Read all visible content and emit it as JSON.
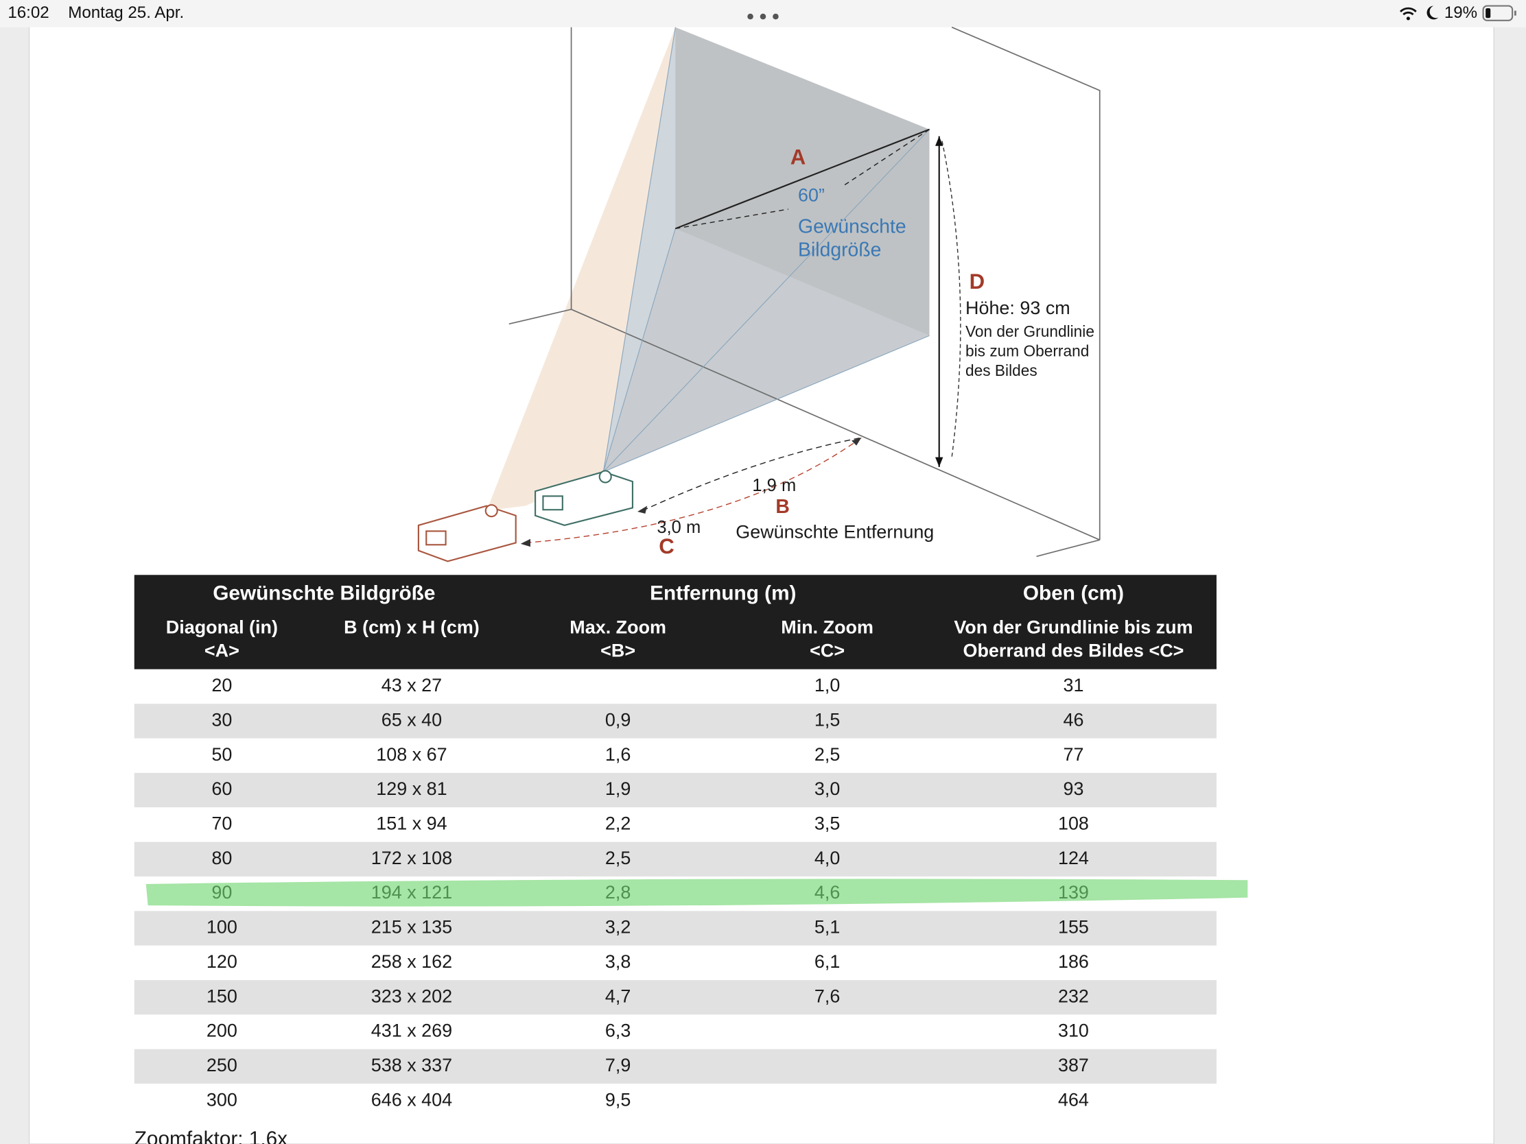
{
  "status_bar": {
    "time": "16:02",
    "date": "Montag 25. Apr.",
    "battery": "19%"
  },
  "diagram": {
    "label_a": "A",
    "diagonal": "60”",
    "image_size_1": "Gewünschte",
    "image_size_2": "Bildgröße",
    "label_d": "D",
    "height": "Höhe: 93 cm",
    "height_note_1": "Von der Grundlinie",
    "height_note_2": "bis zum Oberrand",
    "height_note_3": "des Bildes",
    "distance_b": "1,9 m",
    "label_b": "B",
    "distance_c": "3,0 m",
    "label_c": "C",
    "distance_caption": "Gewünschte Entfernung"
  },
  "table": {
    "groups": [
      "Gewünschte Bildgröße",
      "Entfernung (m)",
      "Oben (cm)"
    ],
    "columns": [
      [
        "Diagonal (in)",
        "<A>"
      ],
      [
        "B (cm) x H (cm)"
      ],
      [
        "Max. Zoom",
        "<B>"
      ],
      [
        "Min. Zoom",
        "<C>"
      ],
      [
        "Von der Grundlinie bis zum",
        "Oberrand des Bildes <C>"
      ]
    ],
    "rows": [
      [
        "20",
        "43 x 27",
        null,
        "1,0",
        "31"
      ],
      [
        "30",
        "65 x 40",
        "0,9",
        "1,5",
        "46"
      ],
      [
        "50",
        "108 x 67",
        "1,6",
        "2,5",
        "77"
      ],
      [
        "60",
        "129 x 81",
        "1,9",
        "3,0",
        "93"
      ],
      [
        "70",
        "151 x 94",
        "2,2",
        "3,5",
        "108"
      ],
      [
        "80",
        "172 x 108",
        "2,5",
        "4,0",
        "124"
      ],
      [
        "90",
        "194 x 121",
        "2,8",
        "4,6",
        "139"
      ],
      [
        "100",
        "215 x 135",
        "3,2",
        "5,1",
        "155"
      ],
      [
        "120",
        "258 x 162",
        "3,8",
        "6,1",
        "186"
      ],
      [
        "150",
        "323 x 202",
        "4,7",
        "7,6",
        "232"
      ],
      [
        "200",
        "431 x 269",
        "6,3",
        null,
        "310"
      ],
      [
        "250",
        "538 x 337",
        "7,9",
        null,
        "387"
      ],
      [
        "300",
        "646 x 404",
        "9,5",
        null,
        "464"
      ]
    ]
  },
  "footer": "Zoomfaktor: 1,6x"
}
